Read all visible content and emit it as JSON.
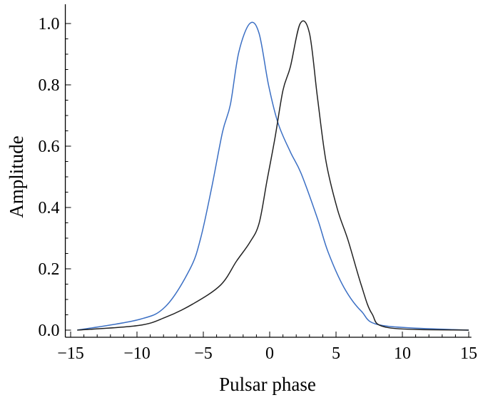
{
  "chart_data": {
    "type": "line",
    "title": "",
    "xlabel": "Pulsar phase",
    "ylabel": "Amplitude",
    "xlim": [
      -15.4,
      15.2
    ],
    "ylim": [
      0,
      1.0
    ],
    "grid": false,
    "xticks": [
      -15,
      -10,
      -5,
      0,
      5,
      10,
      15
    ],
    "xtick_labels": [
      "−15",
      "−10",
      "−5",
      "0",
      "5",
      "10",
      "15"
    ],
    "yticks": [
      0,
      0.2,
      0.4,
      0.6,
      0.8,
      1.0
    ],
    "ytick_labels": [
      "0.0",
      "0.2",
      "0.4",
      "0.6",
      "0.8",
      "1.0"
    ],
    "series": [
      {
        "name": "blue",
        "color": "#3b6fc4",
        "x": [
          -14.5,
          -9.9,
          -7.85,
          -6.0,
          -5.2,
          -4.37,
          -3.55,
          -2.96,
          -2.33,
          -1.5,
          -0.8,
          -0.08,
          0.64,
          1.56,
          2.37,
          3.6,
          4.4,
          5.6,
          6.9,
          8.5,
          15.0
        ],
        "y": [
          0.0,
          0.034,
          0.077,
          0.2,
          0.3,
          0.465,
          0.647,
          0.736,
          0.906,
          1.0,
          0.968,
          0.798,
          0.674,
          0.581,
          0.511,
          0.364,
          0.255,
          0.139,
          0.062,
          0.015,
          0.0
        ]
      },
      {
        "name": "black",
        "color": "#222222",
        "x": [
          -14.5,
          -9.9,
          -7.85,
          -5.8,
          -3.7,
          -2.5,
          -1.5,
          -0.8,
          -0.2,
          0.4,
          1.0,
          1.56,
          2.3,
          3.0,
          3.6,
          4.25,
          5.1,
          5.9,
          6.9,
          7.7,
          8.95,
          15.0
        ],
        "y": [
          0.0,
          0.015,
          0.042,
          0.085,
          0.147,
          0.225,
          0.286,
          0.348,
          0.488,
          0.627,
          0.782,
          0.859,
          1.0,
          0.968,
          0.759,
          0.549,
          0.395,
          0.294,
          0.147,
          0.054,
          0.008,
          0.0
        ]
      }
    ]
  }
}
